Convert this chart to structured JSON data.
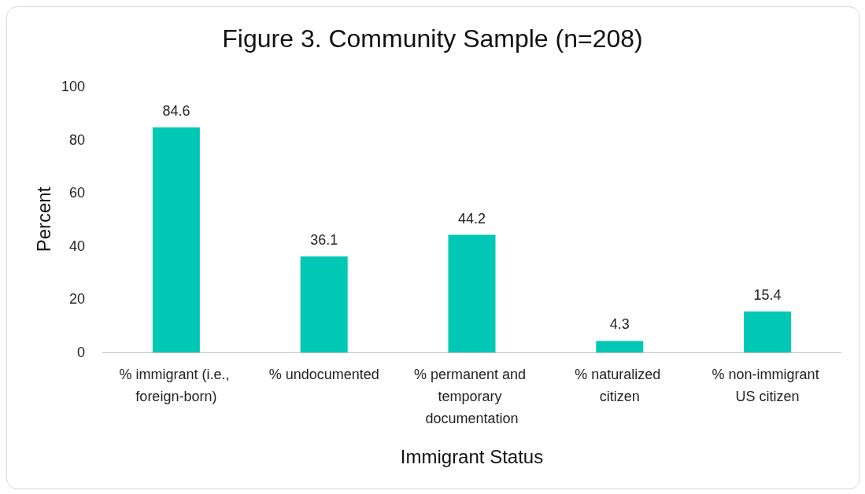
{
  "chart_data": {
    "type": "bar",
    "title": "Figure 3. Community Sample (n=208)",
    "xlabel": "Immigrant Status",
    "ylabel": "Percent",
    "categories": [
      "% immigrant (i.e., foreign-born)",
      "% undocumented",
      "% permanent and temporary documentation",
      "% naturalized citizen",
      "% non-immigrant US citizen"
    ],
    "values": [
      84.6,
      36.1,
      44.2,
      4.3,
      15.4
    ],
    "color": "#00c8b4",
    "ylim": [
      0,
      100
    ],
    "yticks": [
      0,
      20,
      40,
      60,
      80,
      100
    ],
    "grid": false,
    "data_labels": true
  }
}
